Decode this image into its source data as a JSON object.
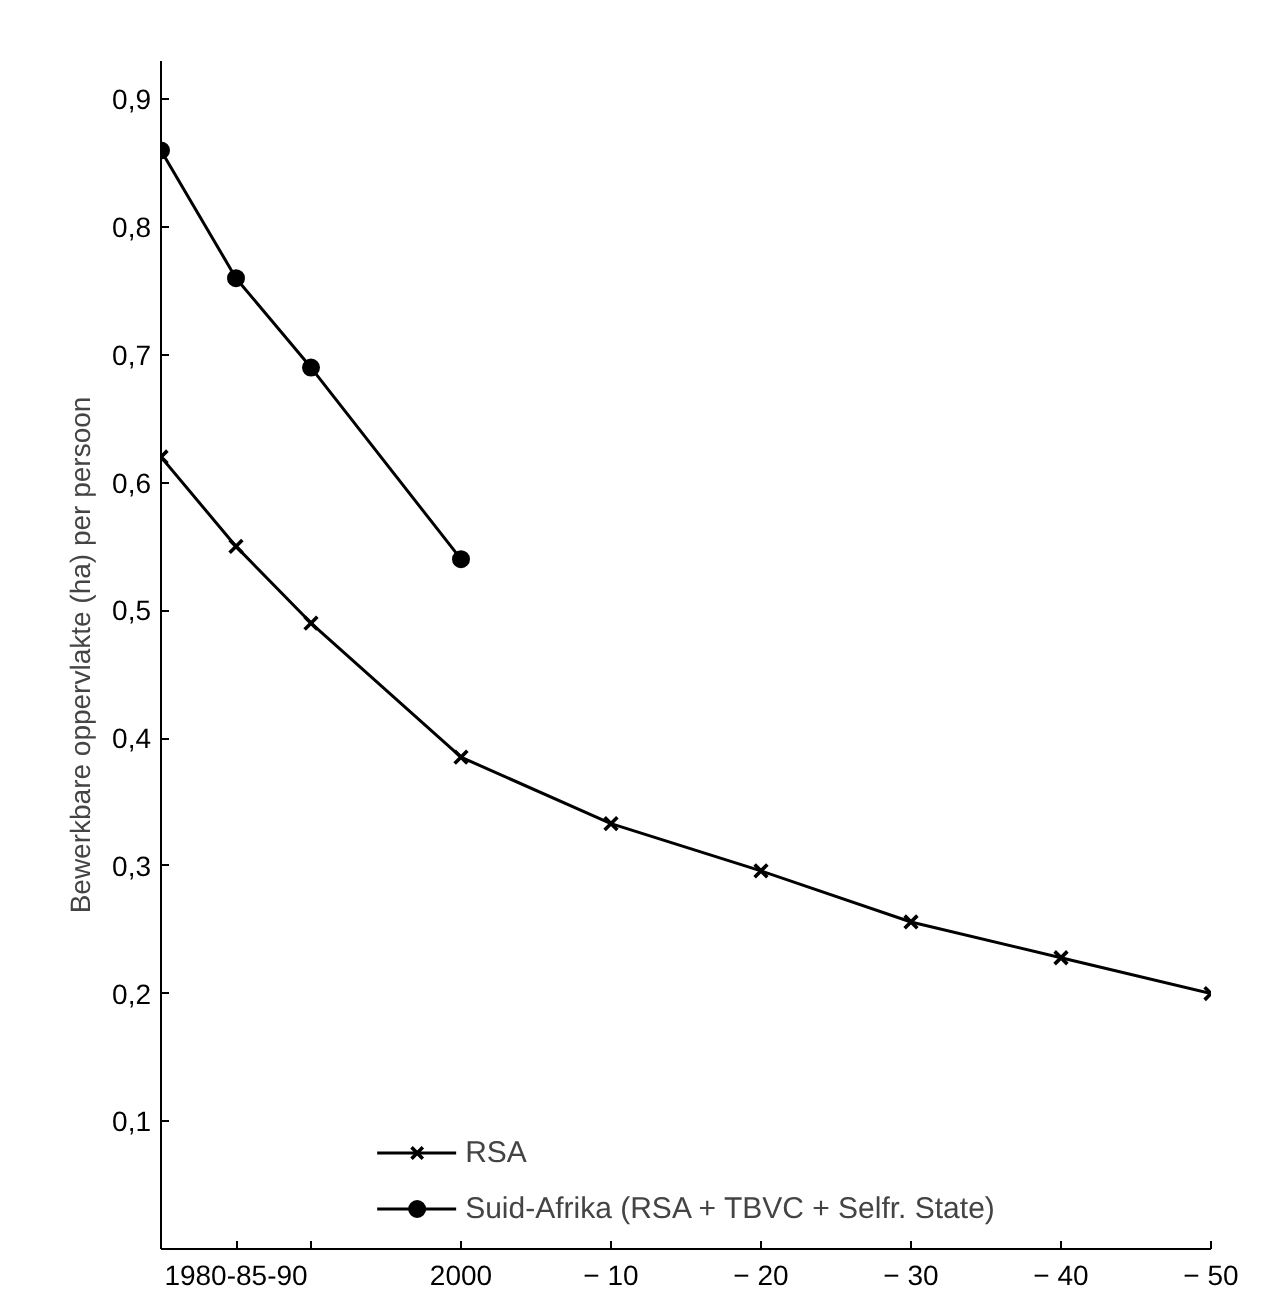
{
  "chart_data": {
    "type": "line",
    "ylabel": "Bewerkbare oppervlakte (ha) per persoon",
    "categories": [
      null,
      "1980-85-90",
      null,
      null,
      "2000",
      null,
      "− 10",
      null,
      "− 20",
      null,
      "− 30",
      null,
      "− 40",
      null,
      "− 50"
    ],
    "ylim": [
      0,
      0.93
    ],
    "yticks": [
      {
        "value": 0.1,
        "label": "0,1"
      },
      {
        "value": 0.2,
        "label": "0,2"
      },
      {
        "value": 0.3,
        "label": "0,3"
      },
      {
        "value": 0.4,
        "label": "0,4"
      },
      {
        "value": 0.5,
        "label": "0,5"
      },
      {
        "value": 0.6,
        "label": "0,6"
      },
      {
        "value": 0.7,
        "label": "0,7"
      },
      {
        "value": 0.8,
        "label": "0,8"
      },
      {
        "value": 0.9,
        "label": "0,9"
      }
    ],
    "grid": false,
    "legend": "bottom",
    "line_style": "solid",
    "series": [
      {
        "name": "RSA",
        "color": "#000000",
        "marker": "cross",
        "values": [
          0.62,
          0.55,
          0.49,
          null,
          0.385,
          null,
          0.333,
          null,
          0.296,
          null,
          0.256,
          null,
          0.228,
          null,
          0.2
        ]
      },
      {
        "name": "Suid-Afrika (RSA + TBVC + Selfr. State)",
        "color": "#000000",
        "marker": "circle",
        "values": [
          0.86,
          0.76,
          0.69,
          null,
          0.54,
          null,
          null,
          null,
          null,
          null,
          null,
          null,
          null,
          null,
          null
        ]
      }
    ]
  }
}
